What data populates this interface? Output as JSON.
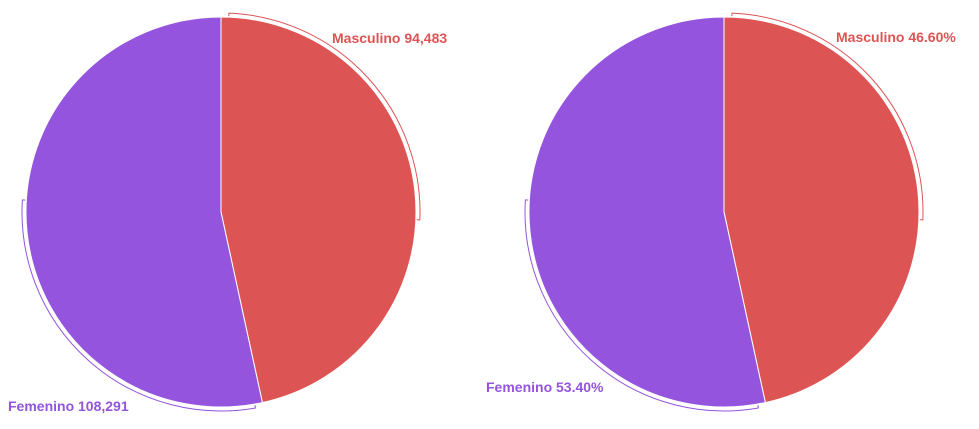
{
  "colors": {
    "masculino": "#dd5454",
    "femenino": "#9454dd",
    "background": "#ffffff"
  },
  "chart_data": [
    {
      "type": "pie",
      "title": "",
      "categories": [
        "Masculino",
        "Femenino"
      ],
      "values": [
        94483,
        108291
      ],
      "labels": [
        "Masculino 94,483",
        "Femenino 108,291"
      ],
      "legend": "none"
    },
    {
      "type": "pie",
      "title": "",
      "categories": [
        "Masculino",
        "Femenino"
      ],
      "values": [
        46.6,
        53.4
      ],
      "labels": [
        "Masculino 46.60%",
        "Femenino 53.40%"
      ],
      "legend": "none"
    }
  ]
}
